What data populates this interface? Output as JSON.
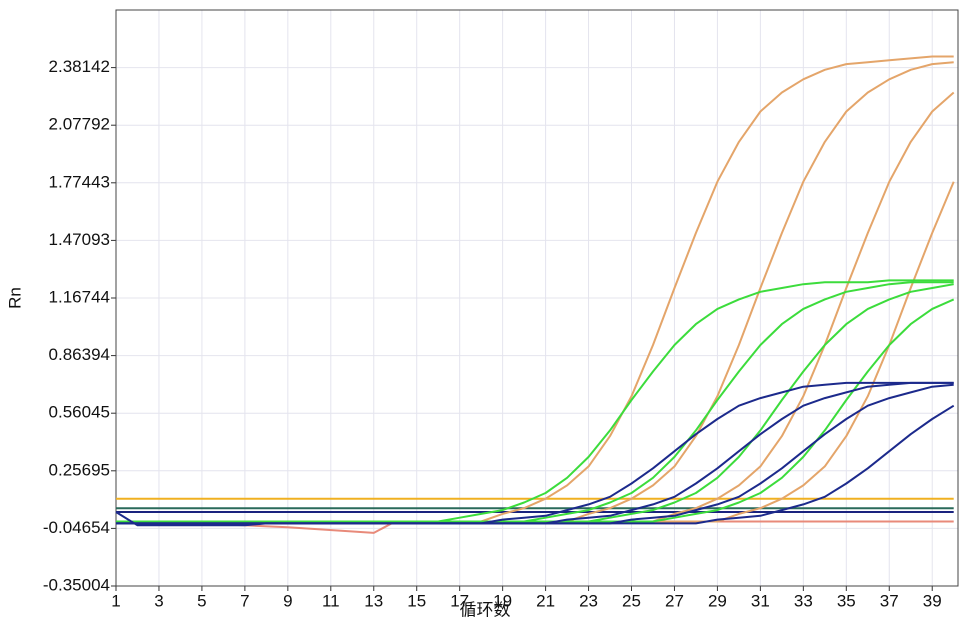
{
  "chart_data": {
    "type": "line",
    "x_label": "循环数",
    "y_label": "Rn",
    "x": [
      1,
      2,
      3,
      4,
      5,
      6,
      7,
      8,
      9,
      10,
      11,
      12,
      13,
      14,
      15,
      16,
      17,
      18,
      19,
      20,
      21,
      22,
      23,
      24,
      25,
      26,
      27,
      28,
      29,
      30,
      31,
      32,
      33,
      34,
      35,
      36,
      37,
      38,
      39,
      40
    ],
    "xlim": [
      1,
      40.2
    ],
    "xticks": [
      1,
      3,
      5,
      7,
      9,
      11,
      13,
      15,
      17,
      19,
      21,
      23,
      25,
      27,
      29,
      31,
      33,
      35,
      37,
      39
    ],
    "ylim": [
      -0.35004,
      2.68491
    ],
    "yticks": [
      -0.35004,
      -0.04654,
      0.25695,
      0.56045,
      0.86394,
      1.16744,
      1.47093,
      1.77443,
      2.07792,
      2.38142
    ],
    "grid": true,
    "series": [
      {
        "color": "#e88a7a",
        "x": [
          1,
          5,
          9,
          13,
          14,
          40
        ],
        "values": [
          -0.01,
          -0.02,
          -0.04,
          -0.07,
          -0.01,
          -0.01
        ]
      },
      {
        "color": "#f0b020",
        "x": [
          1,
          40
        ],
        "values": [
          0.11,
          0.11
        ]
      },
      {
        "color": "#2a6a5a",
        "x": [
          1,
          40
        ],
        "values": [
          0.06,
          0.06
        ]
      },
      {
        "color": "#1a237e",
        "x": [
          1,
          40
        ],
        "values": [
          0.04,
          0.04
        ]
      },
      {
        "color": "#e4a56a",
        "values": [
          -0.01,
          -0.01,
          -0.01,
          -0.01,
          -0.01,
          -0.01,
          -0.01,
          -0.01,
          -0.01,
          -0.01,
          -0.01,
          -0.01,
          -0.01,
          -0.01,
          -0.01,
          -0.01,
          -0.01,
          -0.01,
          0.03,
          0.06,
          0.11,
          0.18,
          0.28,
          0.44,
          0.65,
          0.92,
          1.22,
          1.51,
          1.78,
          1.99,
          2.15,
          2.25,
          2.32,
          2.37,
          2.4,
          2.41,
          2.42,
          2.43,
          2.44,
          2.44
        ]
      },
      {
        "color": "#e4a56a",
        "values": [
          -0.01,
          -0.01,
          -0.01,
          -0.01,
          -0.01,
          -0.01,
          -0.01,
          -0.01,
          -0.01,
          -0.01,
          -0.01,
          -0.01,
          -0.01,
          -0.01,
          -0.01,
          -0.01,
          -0.01,
          -0.01,
          -0.01,
          -0.01,
          -0.01,
          -0.01,
          0.03,
          0.06,
          0.11,
          0.18,
          0.28,
          0.44,
          0.65,
          0.92,
          1.22,
          1.51,
          1.78,
          1.99,
          2.15,
          2.25,
          2.32,
          2.37,
          2.4,
          2.41
        ]
      },
      {
        "color": "#e4a56a",
        "values": [
          -0.01,
          -0.01,
          -0.01,
          -0.01,
          -0.01,
          -0.01,
          -0.01,
          -0.01,
          -0.01,
          -0.01,
          -0.01,
          -0.01,
          -0.01,
          -0.01,
          -0.01,
          -0.01,
          -0.01,
          -0.01,
          -0.01,
          -0.01,
          -0.01,
          -0.01,
          -0.01,
          -0.01,
          -0.01,
          -0.01,
          0.03,
          0.06,
          0.11,
          0.18,
          0.28,
          0.44,
          0.65,
          0.92,
          1.22,
          1.51,
          1.78,
          1.99,
          2.15,
          2.25
        ]
      },
      {
        "color": "#e4a56a",
        "values": [
          -0.01,
          -0.01,
          -0.01,
          -0.01,
          -0.01,
          -0.01,
          -0.01,
          -0.01,
          -0.01,
          -0.01,
          -0.01,
          -0.01,
          -0.01,
          -0.01,
          -0.01,
          -0.01,
          -0.01,
          -0.01,
          -0.01,
          -0.01,
          -0.01,
          -0.01,
          -0.01,
          -0.01,
          -0.01,
          -0.01,
          -0.01,
          -0.01,
          -0.01,
          0.03,
          0.06,
          0.11,
          0.18,
          0.28,
          0.44,
          0.65,
          0.92,
          1.22,
          1.51,
          1.78
        ]
      },
      {
        "color": "#3cdc3c",
        "values": [
          -0.01,
          -0.01,
          -0.01,
          -0.01,
          -0.01,
          -0.01,
          -0.01,
          -0.01,
          -0.01,
          -0.01,
          -0.01,
          -0.01,
          -0.01,
          -0.01,
          -0.01,
          -0.01,
          0.01,
          0.03,
          0.05,
          0.09,
          0.14,
          0.22,
          0.33,
          0.47,
          0.63,
          0.78,
          0.92,
          1.03,
          1.11,
          1.16,
          1.2,
          1.22,
          1.24,
          1.25,
          1.25,
          1.25,
          1.26,
          1.26,
          1.26,
          1.26
        ]
      },
      {
        "color": "#3cdc3c",
        "values": [
          -0.01,
          -0.01,
          -0.01,
          -0.01,
          -0.01,
          -0.01,
          -0.01,
          -0.01,
          -0.01,
          -0.01,
          -0.01,
          -0.01,
          -0.01,
          -0.01,
          -0.01,
          -0.01,
          -0.01,
          -0.01,
          -0.01,
          -0.01,
          0.01,
          0.03,
          0.05,
          0.09,
          0.14,
          0.22,
          0.33,
          0.47,
          0.63,
          0.78,
          0.92,
          1.03,
          1.11,
          1.16,
          1.2,
          1.22,
          1.24,
          1.25,
          1.25,
          1.25
        ]
      },
      {
        "color": "#3cdc3c",
        "values": [
          -0.01,
          -0.01,
          -0.01,
          -0.01,
          -0.01,
          -0.01,
          -0.01,
          -0.01,
          -0.01,
          -0.01,
          -0.01,
          -0.01,
          -0.01,
          -0.01,
          -0.01,
          -0.01,
          -0.01,
          -0.01,
          -0.01,
          -0.01,
          -0.01,
          -0.01,
          -0.01,
          0.01,
          0.03,
          0.05,
          0.09,
          0.14,
          0.22,
          0.33,
          0.47,
          0.63,
          0.78,
          0.92,
          1.03,
          1.11,
          1.16,
          1.2,
          1.22,
          1.24
        ]
      },
      {
        "color": "#3cdc3c",
        "values": [
          -0.01,
          -0.01,
          -0.01,
          -0.01,
          -0.01,
          -0.01,
          -0.01,
          -0.01,
          -0.01,
          -0.01,
          -0.01,
          -0.01,
          -0.01,
          -0.01,
          -0.01,
          -0.01,
          -0.01,
          -0.01,
          -0.01,
          -0.01,
          -0.01,
          -0.01,
          -0.01,
          -0.01,
          -0.01,
          -0.01,
          0.01,
          0.03,
          0.05,
          0.09,
          0.14,
          0.22,
          0.33,
          0.47,
          0.63,
          0.78,
          0.92,
          1.03,
          1.11,
          1.16
        ]
      },
      {
        "color": "#1c2a8c",
        "values": [
          0.04,
          -0.03,
          -0.03,
          -0.03,
          -0.03,
          -0.03,
          -0.03,
          -0.02,
          -0.02,
          -0.02,
          -0.02,
          -0.02,
          -0.02,
          -0.02,
          -0.02,
          -0.02,
          -0.02,
          -0.02,
          0.0,
          0.01,
          0.02,
          0.05,
          0.08,
          0.12,
          0.19,
          0.27,
          0.36,
          0.45,
          0.53,
          0.6,
          0.64,
          0.67,
          0.7,
          0.71,
          0.72,
          0.72,
          0.72,
          0.72,
          0.72,
          0.72
        ]
      },
      {
        "color": "#1c2a8c",
        "values": [
          -0.02,
          -0.02,
          -0.02,
          -0.02,
          -0.02,
          -0.02,
          -0.02,
          -0.02,
          -0.02,
          -0.02,
          -0.02,
          -0.02,
          -0.02,
          -0.02,
          -0.02,
          -0.02,
          -0.02,
          -0.02,
          -0.02,
          -0.02,
          -0.02,
          0.0,
          0.01,
          0.02,
          0.05,
          0.08,
          0.12,
          0.19,
          0.27,
          0.36,
          0.45,
          0.53,
          0.6,
          0.64,
          0.67,
          0.7,
          0.71,
          0.72,
          0.72,
          0.72
        ]
      },
      {
        "color": "#1c2a8c",
        "values": [
          -0.02,
          -0.02,
          -0.02,
          -0.02,
          -0.02,
          -0.02,
          -0.02,
          -0.02,
          -0.02,
          -0.02,
          -0.02,
          -0.02,
          -0.02,
          -0.02,
          -0.02,
          -0.02,
          -0.02,
          -0.02,
          -0.02,
          -0.02,
          -0.02,
          -0.02,
          -0.02,
          -0.02,
          0.0,
          0.01,
          0.02,
          0.05,
          0.08,
          0.12,
          0.19,
          0.27,
          0.36,
          0.45,
          0.53,
          0.6,
          0.64,
          0.67,
          0.7,
          0.71
        ]
      },
      {
        "color": "#1c2a8c",
        "values": [
          -0.02,
          -0.02,
          -0.02,
          -0.02,
          -0.02,
          -0.02,
          -0.02,
          -0.02,
          -0.02,
          -0.02,
          -0.02,
          -0.02,
          -0.02,
          -0.02,
          -0.02,
          -0.02,
          -0.02,
          -0.02,
          -0.02,
          -0.02,
          -0.02,
          -0.02,
          -0.02,
          -0.02,
          -0.02,
          -0.02,
          -0.02,
          -0.02,
          0.0,
          0.01,
          0.02,
          0.05,
          0.08,
          0.12,
          0.19,
          0.27,
          0.36,
          0.45,
          0.53,
          0.6
        ]
      }
    ]
  }
}
